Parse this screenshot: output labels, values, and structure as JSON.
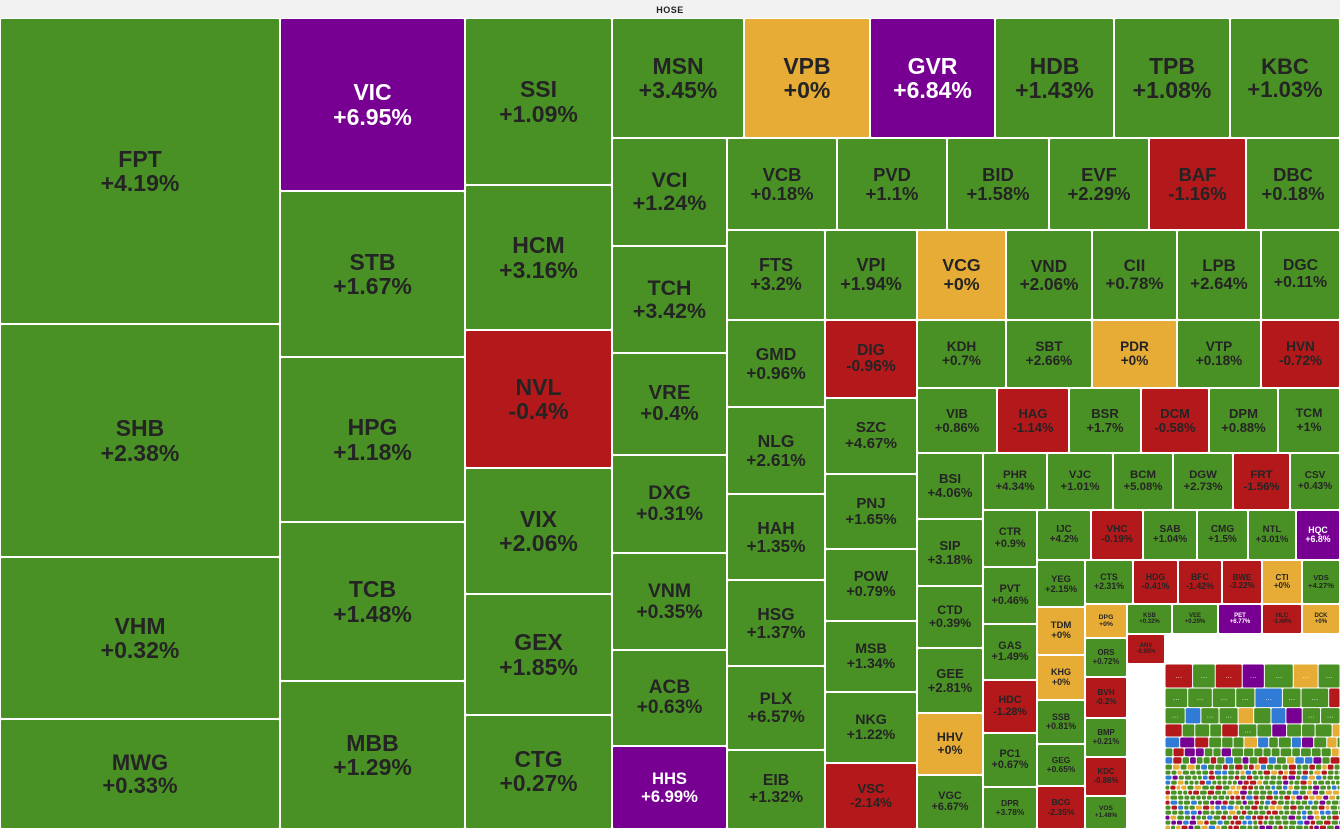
{
  "header": {
    "title": "HOSE"
  },
  "colors": {
    "up": "#4a9125",
    "flat": "#e6ac36",
    "down": "#b3191b",
    "ceiling": "#770092",
    "floor": "#2f7bd6",
    "text_dark": "#242424",
    "text_light": "#ffffff"
  },
  "chart_data": {
    "type": "treemap",
    "title": "HOSE",
    "note_hidden": "…",
    "tiles": [
      {
        "symbol": "FPT",
        "change": "+4.19%",
        "status": "up"
      },
      {
        "symbol": "SHB",
        "change": "+2.38%",
        "status": "up"
      },
      {
        "symbol": "VHM",
        "change": "+0.32%",
        "status": "up"
      },
      {
        "symbol": "MWG",
        "change": "+0.33%",
        "status": "up"
      },
      {
        "symbol": "VIC",
        "change": "+6.95%",
        "status": "ceiling"
      },
      {
        "symbol": "STB",
        "change": "+1.67%",
        "status": "up"
      },
      {
        "symbol": "HPG",
        "change": "+1.18%",
        "status": "up"
      },
      {
        "symbol": "TCB",
        "change": "+1.48%",
        "status": "up"
      },
      {
        "symbol": "MBB",
        "change": "+1.29%",
        "status": "up"
      },
      {
        "symbol": "SSI",
        "change": "+1.09%",
        "status": "up"
      },
      {
        "symbol": "HCM",
        "change": "+3.16%",
        "status": "up"
      },
      {
        "symbol": "NVL",
        "change": "-0.4%",
        "status": "down"
      },
      {
        "symbol": "VIX",
        "change": "+2.06%",
        "status": "up"
      },
      {
        "symbol": "GEX",
        "change": "+1.85%",
        "status": "up"
      },
      {
        "symbol": "CTG",
        "change": "+0.27%",
        "status": "up"
      },
      {
        "symbol": "MSN",
        "change": "+3.45%",
        "status": "up"
      },
      {
        "symbol": "VPB",
        "change": "+0%",
        "status": "flat"
      },
      {
        "symbol": "GVR",
        "change": "+6.84%",
        "status": "ceiling"
      },
      {
        "symbol": "HDB",
        "change": "+1.43%",
        "status": "up"
      },
      {
        "symbol": "TPB",
        "change": "+1.08%",
        "status": "up"
      },
      {
        "symbol": "KBC",
        "change": "+1.03%",
        "status": "up"
      },
      {
        "symbol": "VCI",
        "change": "+1.24%",
        "status": "up"
      },
      {
        "symbol": "TCH",
        "change": "+3.42%",
        "status": "up"
      },
      {
        "symbol": "VRE",
        "change": "+0.4%",
        "status": "up"
      },
      {
        "symbol": "DXG",
        "change": "+0.31%",
        "status": "up"
      },
      {
        "symbol": "VNM",
        "change": "+0.35%",
        "status": "up"
      },
      {
        "symbol": "ACB",
        "change": "+0.63%",
        "status": "up"
      },
      {
        "symbol": "HHS",
        "change": "+6.99%",
        "status": "ceiling"
      },
      {
        "symbol": "VCB",
        "change": "+0.18%",
        "status": "up"
      },
      {
        "symbol": "PVD",
        "change": "+1.1%",
        "status": "up"
      },
      {
        "symbol": "BID",
        "change": "+1.58%",
        "status": "up"
      },
      {
        "symbol": "EVF",
        "change": "+2.29%",
        "status": "up"
      },
      {
        "symbol": "BAF",
        "change": "-1.16%",
        "status": "down"
      },
      {
        "symbol": "DBC",
        "change": "+0.18%",
        "status": "up"
      },
      {
        "symbol": "FTS",
        "change": "+3.2%",
        "status": "up"
      },
      {
        "symbol": "VPI",
        "change": "+1.94%",
        "status": "up"
      },
      {
        "symbol": "VCG",
        "change": "+0%",
        "status": "flat"
      },
      {
        "symbol": "VND",
        "change": "+2.06%",
        "status": "up"
      },
      {
        "symbol": "CII",
        "change": "+0.78%",
        "status": "up"
      },
      {
        "symbol": "LPB",
        "change": "+2.64%",
        "status": "up"
      },
      {
        "symbol": "DGC",
        "change": "+0.11%",
        "status": "up"
      },
      {
        "symbol": "GMD",
        "change": "+0.96%",
        "status": "up"
      },
      {
        "symbol": "NLG",
        "change": "+2.61%",
        "status": "up"
      },
      {
        "symbol": "HAH",
        "change": "+1.35%",
        "status": "up"
      },
      {
        "symbol": "HSG",
        "change": "+1.37%",
        "status": "up"
      },
      {
        "symbol": "PLX",
        "change": "+6.57%",
        "status": "up"
      },
      {
        "symbol": "EIB",
        "change": "+1.32%",
        "status": "up"
      },
      {
        "symbol": "DIG",
        "change": "-0.96%",
        "status": "down"
      },
      {
        "symbol": "SZC",
        "change": "+4.67%",
        "status": "up"
      },
      {
        "symbol": "PNJ",
        "change": "+1.65%",
        "status": "up"
      },
      {
        "symbol": "POW",
        "change": "+0.79%",
        "status": "up"
      },
      {
        "symbol": "MSB",
        "change": "+1.34%",
        "status": "up"
      },
      {
        "symbol": "NKG",
        "change": "+1.22%",
        "status": "up"
      },
      {
        "symbol": "VSC",
        "change": "-2.14%",
        "status": "down"
      },
      {
        "symbol": "KDH",
        "change": "+0.7%",
        "status": "up"
      },
      {
        "symbol": "SBT",
        "change": "+2.66%",
        "status": "up"
      },
      {
        "symbol": "PDR",
        "change": "+0%",
        "status": "flat"
      },
      {
        "symbol": "VTP",
        "change": "+0.18%",
        "status": "up"
      },
      {
        "symbol": "HVN",
        "change": "-0.72%",
        "status": "down"
      },
      {
        "symbol": "VIB",
        "change": "+0.86%",
        "status": "up"
      },
      {
        "symbol": "HAG",
        "change": "-1.14%",
        "status": "down"
      },
      {
        "symbol": "BSR",
        "change": "+1.7%",
        "status": "up"
      },
      {
        "symbol": "DCM",
        "change": "-0.58%",
        "status": "down"
      },
      {
        "symbol": "DPM",
        "change": "+0.88%",
        "status": "up"
      },
      {
        "symbol": "TCM",
        "change": "+1%",
        "status": "up"
      },
      {
        "symbol": "BSI",
        "change": "+4.06%",
        "status": "up"
      },
      {
        "symbol": "PHR",
        "change": "+4.34%",
        "status": "up"
      },
      {
        "symbol": "VJC",
        "change": "+1.01%",
        "status": "up"
      },
      {
        "symbol": "BCM",
        "change": "+5.08%",
        "status": "up"
      },
      {
        "symbol": "DGW",
        "change": "+2.73%",
        "status": "up"
      },
      {
        "symbol": "FRT",
        "change": "-1.56%",
        "status": "down"
      },
      {
        "symbol": "CSV",
        "change": "+0.43%",
        "status": "up"
      },
      {
        "symbol": "SIP",
        "change": "+3.18%",
        "status": "up"
      },
      {
        "symbol": "CTR",
        "change": "+0.9%",
        "status": "up"
      },
      {
        "symbol": "IJC",
        "change": "+4.2%",
        "status": "up"
      },
      {
        "symbol": "VHC",
        "change": "-0.19%",
        "status": "down"
      },
      {
        "symbol": "SAB",
        "change": "+1.04%",
        "status": "up"
      },
      {
        "symbol": "CMG",
        "change": "+1.5%",
        "status": "up"
      },
      {
        "symbol": "NTL",
        "change": "+3.01%",
        "status": "up"
      },
      {
        "symbol": "HQC",
        "change": "+6.8%",
        "status": "ceiling"
      },
      {
        "symbol": "CTD",
        "change": "+0.39%",
        "status": "up"
      },
      {
        "symbol": "PVT",
        "change": "+0.46%",
        "status": "up"
      },
      {
        "symbol": "YEG",
        "change": "+2.15%",
        "status": "up"
      },
      {
        "symbol": "CTS",
        "change": "+2.31%",
        "status": "up"
      },
      {
        "symbol": "HDG",
        "change": "-0.41%",
        "status": "down"
      },
      {
        "symbol": "BFC",
        "change": "-1.42%",
        "status": "down"
      },
      {
        "symbol": "BWE",
        "change": "-3.22%",
        "status": "down"
      },
      {
        "symbol": "CTI",
        "change": "+0%",
        "status": "flat"
      },
      {
        "symbol": "VDS",
        "change": "+4.27%",
        "status": "up"
      },
      {
        "symbol": "TDM",
        "change": "+0%",
        "status": "flat"
      },
      {
        "symbol": "DPG",
        "change": "+0%",
        "status": "flat"
      },
      {
        "symbol": "KSB",
        "change": "+0.32%",
        "status": "up"
      },
      {
        "symbol": "VEE",
        "change": "+0.29%",
        "status": "up"
      },
      {
        "symbol": "PET",
        "change": "+6.77%",
        "status": "ceiling"
      },
      {
        "symbol": "HLC",
        "change": "-1.49%",
        "status": "down"
      },
      {
        "symbol": "DCK",
        "change": "+0%",
        "status": "flat"
      },
      {
        "symbol": "GAS",
        "change": "+1.49%",
        "status": "up"
      },
      {
        "symbol": "ORS",
        "change": "+0.72%",
        "status": "up"
      },
      {
        "symbol": "ANV",
        "change": "-0.95%",
        "status": "down"
      },
      {
        "symbol": "GEE",
        "change": "+2.81%",
        "status": "up"
      },
      {
        "symbol": "KHG",
        "change": "+0%",
        "status": "flat"
      },
      {
        "symbol": "BVH",
        "change": "-0.2%",
        "status": "down"
      },
      {
        "symbol": "HDC",
        "change": "-1.28%",
        "status": "down"
      },
      {
        "symbol": "SSB",
        "change": "+0.81%",
        "status": "up"
      },
      {
        "symbol": "BMP",
        "change": "+0.21%",
        "status": "up"
      },
      {
        "symbol": "HHV",
        "change": "+0%",
        "status": "flat"
      },
      {
        "symbol": "PC1",
        "change": "+0.67%",
        "status": "up"
      },
      {
        "symbol": "GEG",
        "change": "+0.65%",
        "status": "up"
      },
      {
        "symbol": "KDC",
        "change": "-0.86%",
        "status": "down"
      },
      {
        "symbol": "VGC",
        "change": "+6.67%",
        "status": "up"
      },
      {
        "symbol": "DPR",
        "change": "+3.78%",
        "status": "up"
      },
      {
        "symbol": "BCG",
        "change": "-2.35%",
        "status": "down"
      },
      {
        "symbol": "VOS",
        "change": "+1.48%",
        "status": "up"
      }
    ]
  }
}
